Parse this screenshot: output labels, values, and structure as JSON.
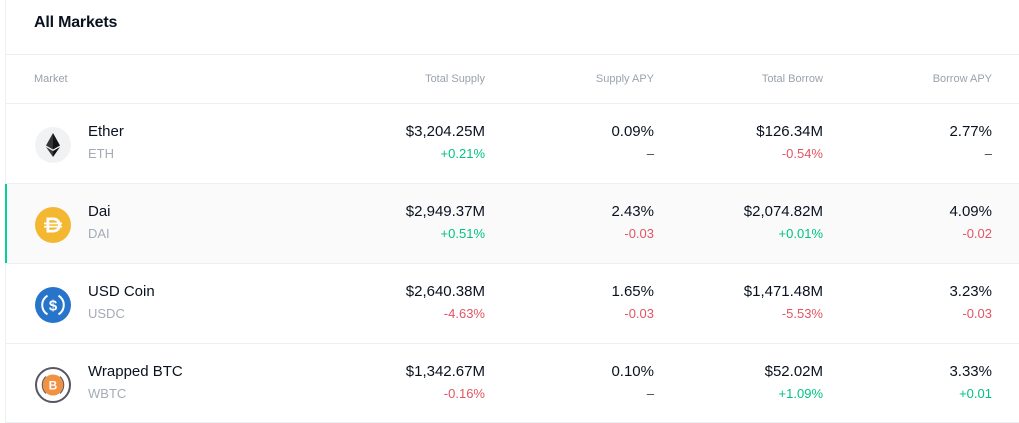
{
  "title": "All Markets",
  "columns": {
    "market": "Market",
    "total_supply": "Total Supply",
    "supply_apy": "Supply APY",
    "total_borrow": "Total Borrow",
    "borrow_apy": "Borrow APY"
  },
  "markets": [
    {
      "name": "Ether",
      "symbol": "ETH",
      "icon": "ether-icon",
      "total_supply": "$3,204.25M",
      "total_supply_change": "+0.21%",
      "supply_apy": "0.09%",
      "supply_apy_change": "–",
      "total_borrow": "$126.34M",
      "total_borrow_change": "-0.54%",
      "borrow_apy": "2.77%",
      "borrow_apy_change": "–"
    },
    {
      "name": "Dai",
      "symbol": "DAI",
      "icon": "dai-icon",
      "total_supply": "$2,949.37M",
      "total_supply_change": "+0.51%",
      "supply_apy": "2.43%",
      "supply_apy_change": "-0.03",
      "total_borrow": "$2,074.82M",
      "total_borrow_change": "+0.01%",
      "borrow_apy": "4.09%",
      "borrow_apy_change": "-0.02"
    },
    {
      "name": "USD Coin",
      "symbol": "USDC",
      "icon": "usdc-icon",
      "total_supply": "$2,640.38M",
      "total_supply_change": "-4.63%",
      "supply_apy": "1.65%",
      "supply_apy_change": "-0.03",
      "total_borrow": "$1,471.48M",
      "total_borrow_change": "-5.53%",
      "borrow_apy": "3.23%",
      "borrow_apy_change": "-0.03"
    },
    {
      "name": "Wrapped BTC",
      "symbol": "WBTC",
      "icon": "wbtc-icon",
      "total_supply": "$1,342.67M",
      "total_supply_change": "-0.16%",
      "supply_apy": "0.10%",
      "supply_apy_change": "–",
      "total_borrow": "$52.02M",
      "total_borrow_change": "+1.09%",
      "borrow_apy": "3.33%",
      "borrow_apy_change": "+0.01"
    }
  ],
  "colors": {
    "positive": "#00c384",
    "negative": "#e25563",
    "accent": "#00d395",
    "dai": "#f4b731",
    "usdc": "#2775ca",
    "wbtc": "#f09242"
  }
}
